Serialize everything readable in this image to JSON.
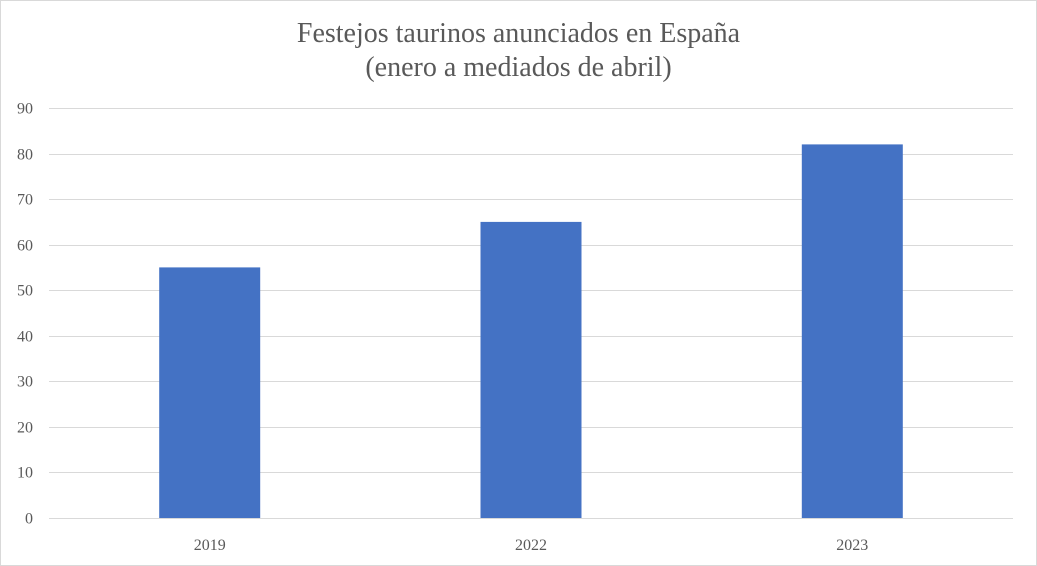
{
  "chart_data": {
    "type": "bar",
    "title": "Festejos taurinos anunciados en España",
    "subtitle": "(enero a mediados de abril)",
    "categories": [
      "2019",
      "2022",
      "2023"
    ],
    "values": [
      55,
      65,
      82
    ],
    "ylim": [
      0,
      90
    ],
    "yticks": [
      0,
      10,
      20,
      30,
      40,
      50,
      60,
      70,
      80,
      90
    ],
    "grid": true,
    "bar_color": "#4472C4",
    "grid_color": "#d9d9d9",
    "text_color": "#595959"
  }
}
